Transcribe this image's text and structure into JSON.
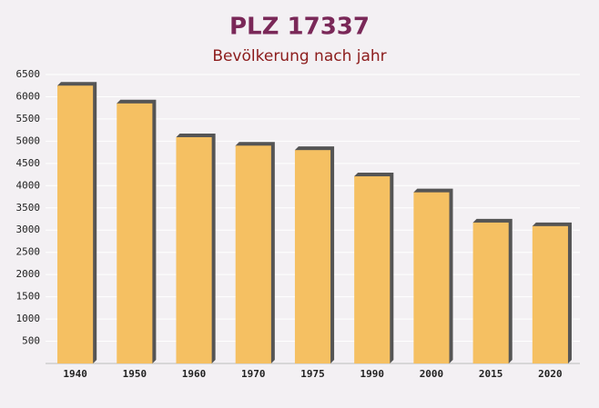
{
  "chart_data": {
    "type": "bar",
    "title": "PLZ 17337",
    "subtitle": "Bevölkerung nach jahr",
    "categories": [
      "1940",
      "1950",
      "1960",
      "1970",
      "1975",
      "1990",
      "2000",
      "2015",
      "2020"
    ],
    "values": [
      6250,
      5850,
      5090,
      4900,
      4800,
      4210,
      3850,
      3170,
      3090
    ],
    "color": "#f5c062",
    "ylim": [
      0,
      6500
    ],
    "yticks": [
      500,
      1000,
      1500,
      2000,
      2500,
      3000,
      3500,
      4000,
      4500,
      5000,
      5500,
      6000,
      6500
    ],
    "grid": true
  }
}
